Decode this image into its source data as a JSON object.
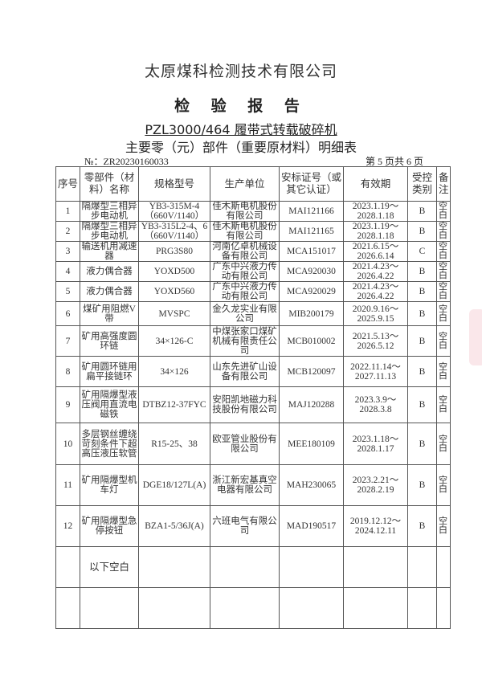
{
  "header": {
    "company": "太原煤科检测技术有限公司",
    "report_title": "检 验 报 告",
    "product": "PZL3000/464 履带式转载破碎机",
    "subtitle": "主要零（元）部件（重要原材料）明细表",
    "doc_no": "№：ZR20230160033",
    "page_info": "第 5 页共 6 页"
  },
  "table": {
    "columns": [
      "序号",
      "零部件（材料）名称",
      "规格型号",
      "生产单位",
      "安标证号（或其它认证）",
      "有效期",
      "受控类别",
      "备注"
    ],
    "rows": [
      {
        "no": "1",
        "name": "隔爆型三相异步电动机",
        "model": "YB3-315M-4（660V/1140）",
        "maker": "佳木斯电机股份有限公司",
        "cert": "MAI121166",
        "valid": "2023.1.19～2028.1.18",
        "cls": "B",
        "note": "空白"
      },
      {
        "no": "2",
        "name": "隔爆型三相异步电动机",
        "model": "YB3-315L2-4、6（660V/1140）",
        "maker": "佳木斯电机股份有限公司",
        "cert": "MAI121165",
        "valid": "2023.1.19～2028.1.18",
        "cls": "B",
        "note": "空白"
      },
      {
        "no": "3",
        "name": "输送机用减速器",
        "model": "PRG3S80",
        "maker": "河南亿卓机械设备有限公司",
        "cert": "MCA151017",
        "valid": "2021.6.15～2026.6.14",
        "cls": "C",
        "note": "空白"
      },
      {
        "no": "4",
        "name": "液力偶合器",
        "model": "YOXD500",
        "maker": "广东中兴液力传动有限公司",
        "cert": "MCA920030",
        "valid": "2021.4.23～2026.4.22",
        "cls": "B",
        "note": "空白"
      },
      {
        "no": "5",
        "name": "液力偶合器",
        "model": "YOXD560",
        "maker": "广东中兴液力传动有限公司",
        "cert": "MCA920029",
        "valid": "2021.4.23～2026.4.22",
        "cls": "B",
        "note": "空白"
      },
      {
        "no": "6",
        "name": "煤矿用阻燃V带",
        "model": "MVSPC",
        "maker": "金久龙实业有限公司",
        "cert": "MIB200179",
        "valid": "2020.9.16～2025.9.15",
        "cls": "B",
        "note": "空白"
      },
      {
        "no": "7",
        "name": "矿用高强度圆环链",
        "model": "34×126-C",
        "maker": "中煤张家口煤矿机械有限责任公司",
        "cert": "MCB010002",
        "valid": "2021.5.13～2026.5.12",
        "cls": "B",
        "note": "空白"
      },
      {
        "no": "8",
        "name": "矿用圆环链用扁平接链环",
        "model": "34×126",
        "maker": "山东先进矿山设备有限公司",
        "cert": "MCB120097",
        "valid": "2022.11.14～2027.11.13",
        "cls": "B",
        "note": "空白"
      },
      {
        "no": "9",
        "name": "矿用隔爆型液压阀用直流电磁铁",
        "model": "DTBZ12-37FYC",
        "maker": "安阳凯地磁力科技股份有限公司",
        "cert": "MAJ120288",
        "valid": "2023.3.9～2028.3.8",
        "cls": "B",
        "note": "空白"
      },
      {
        "no": "10",
        "name": "多层钢丝缠绕苛刻条件下超高压液压软管",
        "model": "R15-25、38",
        "maker": "欧亚管业股份有限公司",
        "cert": "MEE180109",
        "valid": "2023.1.18～2028.1.17",
        "cls": "B",
        "note": "空白"
      },
      {
        "no": "11",
        "name": "矿用隔爆型机车灯",
        "model": "DGE18/127L(A)",
        "maker": "浙江新宏基真空电器有限公司",
        "cert": "MAH230065",
        "valid": "2023.2.21～2028.2.19",
        "cls": "B",
        "note": "空白"
      },
      {
        "no": "12",
        "name": "矿用隔爆型急停按钮",
        "model": "BZA1-5/36J(A)",
        "maker": "六班电气有限公司",
        "cert": "MAD190517",
        "valid": "2019.12.12～2024.12.11",
        "cls": "B",
        "note": "空白"
      }
    ],
    "end_marker": "以下空白"
  }
}
